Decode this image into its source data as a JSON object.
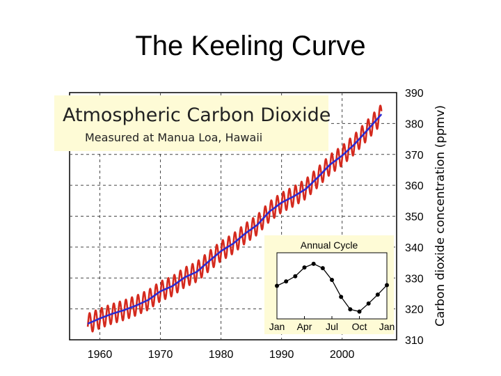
{
  "slide": {
    "title": "The Keeling Curve"
  },
  "chart_data": [
    {
      "type": "line",
      "title": "Atmospheric Carbon Dioxide",
      "subtitle": "Measured at Manua Loa, Hawaii",
      "xlabel": "",
      "ylabel": "Carbon dioxide concentration (ppmv)",
      "xlim": [
        1955,
        2009
      ],
      "ylim": [
        310,
        390
      ],
      "x_ticks": [
        "1960",
        "1970",
        "1980",
        "1990",
        "2000"
      ],
      "y_ticks": [
        "310",
        "320",
        "330",
        "340",
        "350",
        "360",
        "370",
        "380",
        "390"
      ],
      "grid": true,
      "colors": {
        "monthly": "#d42a1e",
        "annual": "#2b2ad0"
      },
      "series": [
        {
          "key": "annual_mean",
          "x": [
            1958,
            1960,
            1962,
            1964,
            1966,
            1968,
            1970,
            1972,
            1974,
            1976,
            1978,
            1980,
            1982,
            1984,
            1986,
            1988,
            1990,
            1992,
            1994,
            1996,
            1998,
            2000,
            2002,
            2004,
            2006
          ],
          "values": [
            315.2,
            316.9,
            318.4,
            319.6,
            321.1,
            322.9,
            325.7,
            327.4,
            330.2,
            332.0,
            335.4,
            338.7,
            341.1,
            344.4,
            347.2,
            351.5,
            354.4,
            356.4,
            358.8,
            362.6,
            366.7,
            369.6,
            373.2,
            377.5,
            381.9
          ]
        }
      ],
      "seasonal_amplitude": 3.2
    },
    {
      "type": "line",
      "title": "Annual Cycle",
      "categories": [
        "Jan",
        "Feb",
        "Mar",
        "Apr",
        "May",
        "Jun",
        "Jul",
        "Aug",
        "Sep",
        "Oct",
        "Nov",
        "Dec",
        "Jan"
      ],
      "x_ticks": [
        "Jan",
        "Apr",
        "Jul",
        "Oct",
        "Jan"
      ],
      "values": [
        0.0,
        0.6,
        1.3,
        2.5,
        3.0,
        2.4,
        0.8,
        -1.5,
        -3.2,
        -3.5,
        -2.4,
        -1.2,
        0.1
      ],
      "ylim": [
        -4.5,
        4.5
      ]
    }
  ]
}
